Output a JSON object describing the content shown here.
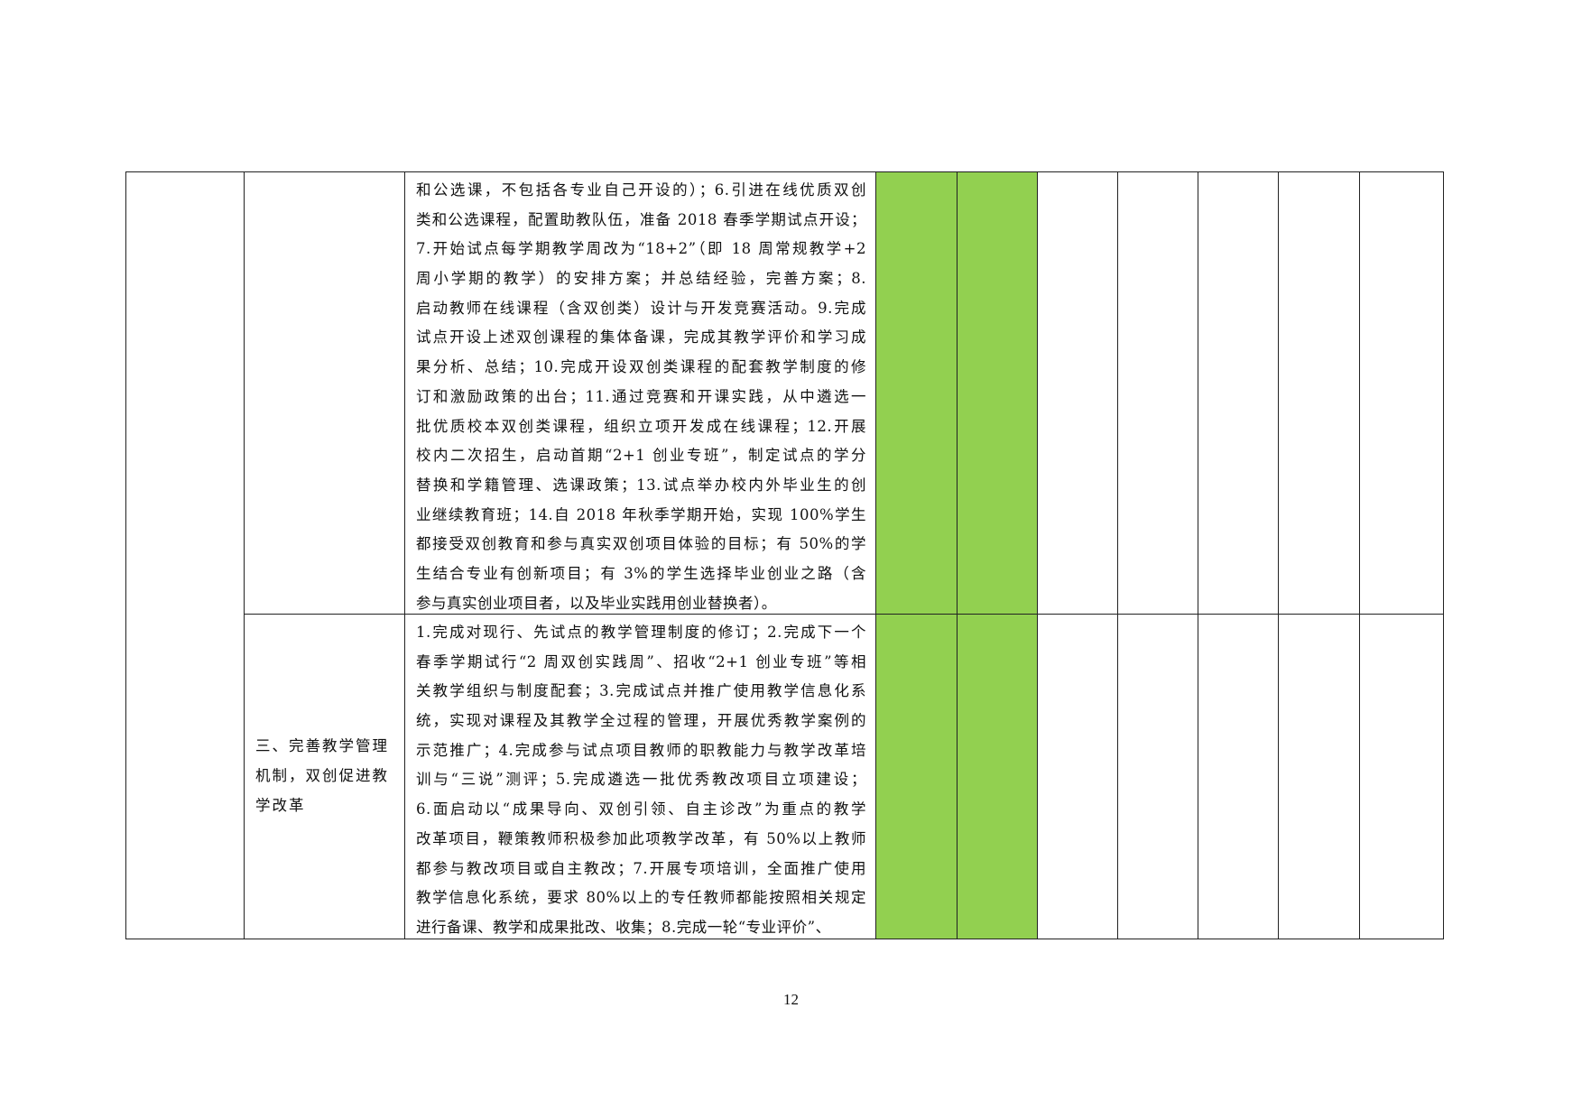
{
  "table": {
    "row1": {
      "category": "",
      "content_lines": [
        "和公选课，不包括各专业自己开设的）；6.引进在线优质双创",
        "类和公选课程，配置助教队伍，准备 2018 春季学期试点开设；",
        "7.开始试点每学期教学周改为“18+2”（即 18 周常规教学+2",
        "周小学期的教学）的安排方案；并总结经验，完善方案；8.",
        "启动教师在线课程（含双创类）设计与开发竞赛活动。9.完成",
        "试点开设上述双创课程的集体备课，完成其教学评价和学习成",
        "果分析、总结；10.完成开设双创类课程的配套教学制度的修",
        "订和激励政策的出台；11.通过竞赛和开课实践，从中遴选一",
        "批优质校本双创类课程，组织立项开发成在线课程；12.开展",
        "校内二次招生，启动首期“2+1 创业专班”，制定试点的学分",
        "替换和学籍管理、选课政策；13.试点举办校内外毕业生的创",
        "业继续教育班；14.自 2018 年秋季学期开始，实现 100%学生",
        "都接受双创教育和参与真实双创项目体验的目标；有 50%的学",
        "生结合专业有创新项目；有 3%的学生选择毕业创业之路（含",
        "参与真实创业项目者，以及毕业实践用创业替换者）。"
      ]
    },
    "row2": {
      "category_lines": [
        "三、完善教学管理",
        "机制，双创促进教",
        "学改革"
      ],
      "content_lines": [
        "1.完成对现行、先试点的教学管理制度的修订；2.完成下一个",
        "春季学期试行“2 周双创实践周”、招收“2+1 创业专班”等相",
        "关教学组织与制度配套；3.完成试点并推广使用教学信息化系",
        "统，实现对课程及其教学全过程的管理，开展优秀教学案例的",
        "示范推广；4.完成参与试点项目教师的职教能力与教学改革培",
        "训与“三说”测评；5.完成遴选一批优秀教改项目立项建设；",
        "6.面启动以“成果导向、双创引领、自主诊改”为重点的教学",
        "改革项目，鞭策教师积极参加此项教学改革，有 50%以上教师",
        "都参与教改项目或自主教改；7.开展专项培训，全面推广使用",
        "教学信息化系统，要求 80%以上的专任教师都能按照相关规定",
        "进行备课、教学和成果批改、收集；8.完成一轮“专业评价”、"
      ]
    },
    "highlight_color": "#92D050"
  },
  "page_number": "12"
}
